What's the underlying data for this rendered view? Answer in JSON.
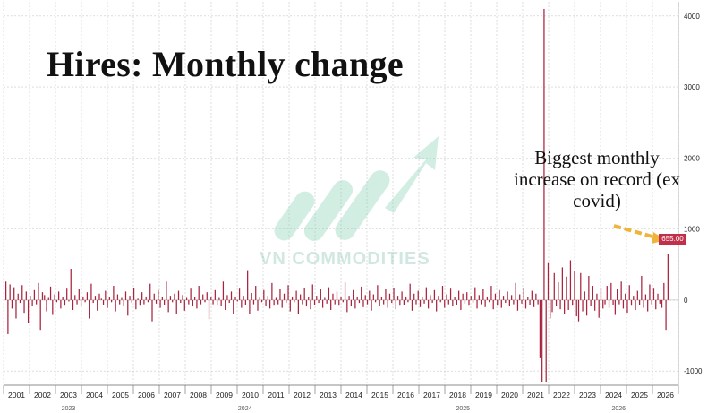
{
  "chart_data": {
    "type": "bar",
    "title": "Hires: Monthly change",
    "annotation": "Biggest monthly increase on record (ex covid)",
    "watermark": "VN COMMODITIES",
    "last_value_label": "655.00",
    "ylim": [
      -1200,
      4200
    ],
    "yticks": [
      -1000,
      0,
      1000,
      2000,
      3000,
      4000
    ],
    "grid": true,
    "bar_color": "#a8243e",
    "badge_color": "#c0304a",
    "arrow_color": "#f0b43c",
    "x_start_year": 2001,
    "x_end_year": 2026,
    "xtick_labels": [
      "2001",
      "2002",
      "2003",
      "2004",
      "2005",
      "2006",
      "2007",
      "2008",
      "2009",
      "2010",
      "2011",
      "2012",
      "2013",
      "2014",
      "2015",
      "2016",
      "2017",
      "2018",
      "2019",
      "2020",
      "2021",
      "2022",
      "2023",
      "2024",
      "2025",
      "2026"
    ],
    "secondary_labels": [
      "2023",
      "2024",
      "2025",
      "2026"
    ],
    "values": [
      260,
      -480,
      220,
      -120,
      180,
      -260,
      90,
      -40,
      210,
      -180,
      120,
      -320,
      60,
      -90,
      140,
      -60,
      240,
      -420,
      110,
      70,
      -160,
      30,
      190,
      -210,
      80,
      -30,
      120,
      -120,
      40,
      -80,
      160,
      -20,
      440,
      -140,
      70,
      -60,
      150,
      -90,
      50,
      -30,
      110,
      -260,
      230,
      -40,
      60,
      -150,
      90,
      20,
      -70,
      130,
      -110,
      40,
      -30,
      200,
      -160,
      80,
      -60,
      30,
      -90,
      120,
      -220,
      60,
      -40,
      170,
      -130,
      20,
      -80,
      110,
      -60,
      50,
      -30,
      230,
      -300,
      90,
      -50,
      140,
      -110,
      40,
      -70,
      260,
      -170,
      60,
      -30,
      90,
      -200,
      130,
      -40,
      70,
      -150,
      30,
      -60,
      160,
      -90,
      40,
      -120,
      200,
      -60,
      80,
      -30,
      110,
      -270,
      50,
      -60,
      140,
      -80,
      30,
      -90,
      260,
      -140,
      70,
      -40,
      120,
      -190,
      40,
      -20,
      160,
      -110,
      60,
      -70,
      420,
      -200,
      100,
      -60,
      200,
      -150,
      50,
      -30,
      140,
      -90,
      60,
      -120,
      240,
      -80,
      30,
      -60,
      150,
      -110,
      90,
      -40,
      210,
      -160,
      50,
      -30,
      130,
      -200,
      80,
      -60,
      170,
      -90,
      40,
      -130,
      220,
      -70,
      60,
      -40,
      150,
      -110,
      30,
      -50,
      180,
      -140,
      90,
      -60,
      120,
      -80,
      40,
      -30,
      250,
      -170,
      60,
      -90,
      140,
      -120,
      50,
      -40,
      190,
      -100,
      70,
      -60,
      130,
      -150,
      80,
      -30,
      210,
      -90,
      40,
      -60,
      150,
      -110,
      90,
      -40,
      170,
      -130,
      60,
      -80,
      120,
      -70,
      50,
      -30,
      230,
      -150,
      90,
      -60,
      130,
      -100,
      40,
      -50,
      180,
      -120,
      70,
      -40,
      140,
      -160,
      60,
      -30,
      200,
      -110,
      80,
      -60,
      160,
      -90,
      40,
      -70,
      130,
      -140,
      90,
      -50,
      110,
      -80,
      60,
      -40,
      180,
      -120,
      70,
      -60,
      150,
      -100,
      50,
      -30,
      200,
      -130,
      90,
      -80,
      140,
      -110,
      60,
      -40,
      120,
      -90,
      70,
      -60,
      240,
      -150,
      80,
      -50,
      160,
      -120,
      40,
      -70,
      130,
      -100,
      90,
      -60,
      -820,
      -1150,
      4100,
      -1150,
      520,
      -260,
      -170,
      380,
      -90,
      250,
      -130,
      460,
      -190,
      330,
      -140,
      560,
      -80,
      410,
      -230,
      -300,
      380,
      -160,
      120,
      -220,
      340,
      -90,
      200,
      -150,
      90,
      -250,
      160,
      -120,
      -60,
      200,
      -110,
      240,
      -70,
      -210,
      150,
      -60,
      260,
      -120,
      90,
      -180,
      210,
      -80,
      60,
      -140,
      130,
      -70,
      340,
      -110,
      80,
      -160,
      220,
      -60,
      160,
      -130,
      90,
      -50,
      -110,
      240,
      -420,
      655
    ]
  }
}
